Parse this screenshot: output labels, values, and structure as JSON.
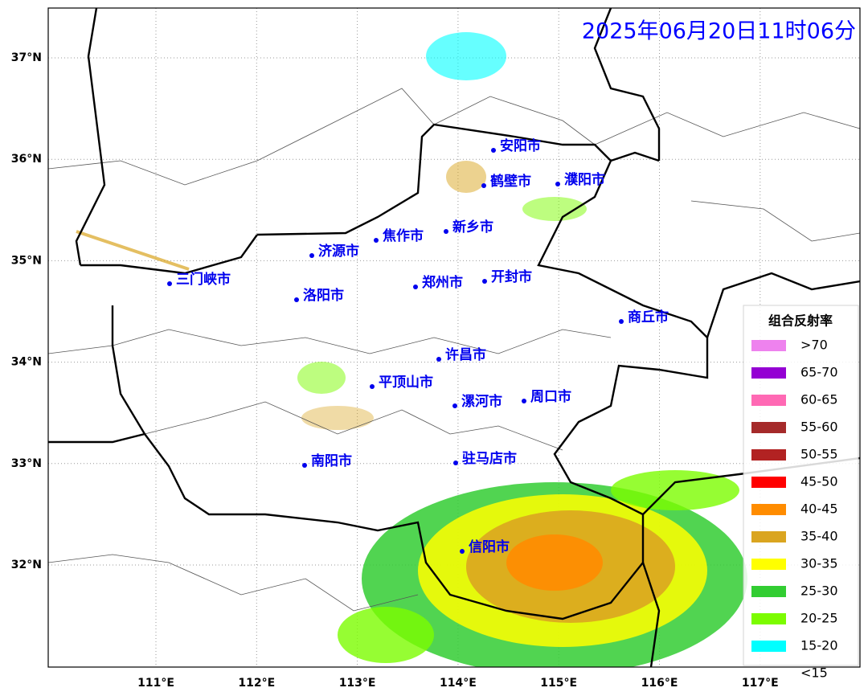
{
  "title": "2025年06月20日11时06分",
  "lon_ticks": [
    {
      "value": 111,
      "label": "111°E"
    },
    {
      "value": 112,
      "label": "112°E"
    },
    {
      "value": 113,
      "label": "113°E"
    },
    {
      "value": 114,
      "label": "114°E"
    },
    {
      "value": 115,
      "label": "115°E"
    },
    {
      "value": 116,
      "label": "116°E"
    },
    {
      "value": 117,
      "label": "117°E"
    }
  ],
  "lat_ticks": [
    {
      "value": 37,
      "label": "37°N"
    },
    {
      "value": 36,
      "label": "36°N"
    },
    {
      "value": 35,
      "label": "35°N"
    },
    {
      "value": 34,
      "label": "34°N"
    },
    {
      "value": 33,
      "label": "33°N"
    },
    {
      "value": 32,
      "label": "32°N"
    }
  ],
  "cities": [
    "安阳市",
    "鹤壁市",
    "濮阳市",
    "新乡市",
    "焦作市",
    "济源市",
    "三门峡市",
    "洛阳市",
    "郑州市",
    "开封市",
    "商丘市",
    "许昌市",
    "平顶山市",
    "漯河市",
    "周口市",
    "南阳市",
    "驻马店市",
    "信阳市"
  ],
  "legend": {
    "title": "组合反射率",
    "items": [
      {
        "label": ">70",
        "color": "#ee82ee"
      },
      {
        "label": "65-70",
        "color": "#9400d3"
      },
      {
        "label": "60-65",
        "color": "#ff69b4"
      },
      {
        "label": "55-60",
        "color": "#a52a2a"
      },
      {
        "label": "50-55",
        "color": "#b22222"
      },
      {
        "label": "45-50",
        "color": "#ff0000"
      },
      {
        "label": "40-45",
        "color": "#ff8c00"
      },
      {
        "label": "35-40",
        "color": "#daa520"
      },
      {
        "label": "30-35",
        "color": "#ffff00"
      },
      {
        "label": "25-30",
        "color": "#32cd32"
      },
      {
        "label": "20-25",
        "color": "#7cfc00"
      },
      {
        "label": "15-20",
        "color": "#00ffff"
      },
      {
        "label": "<15",
        "color": "#ffffff"
      }
    ]
  }
}
